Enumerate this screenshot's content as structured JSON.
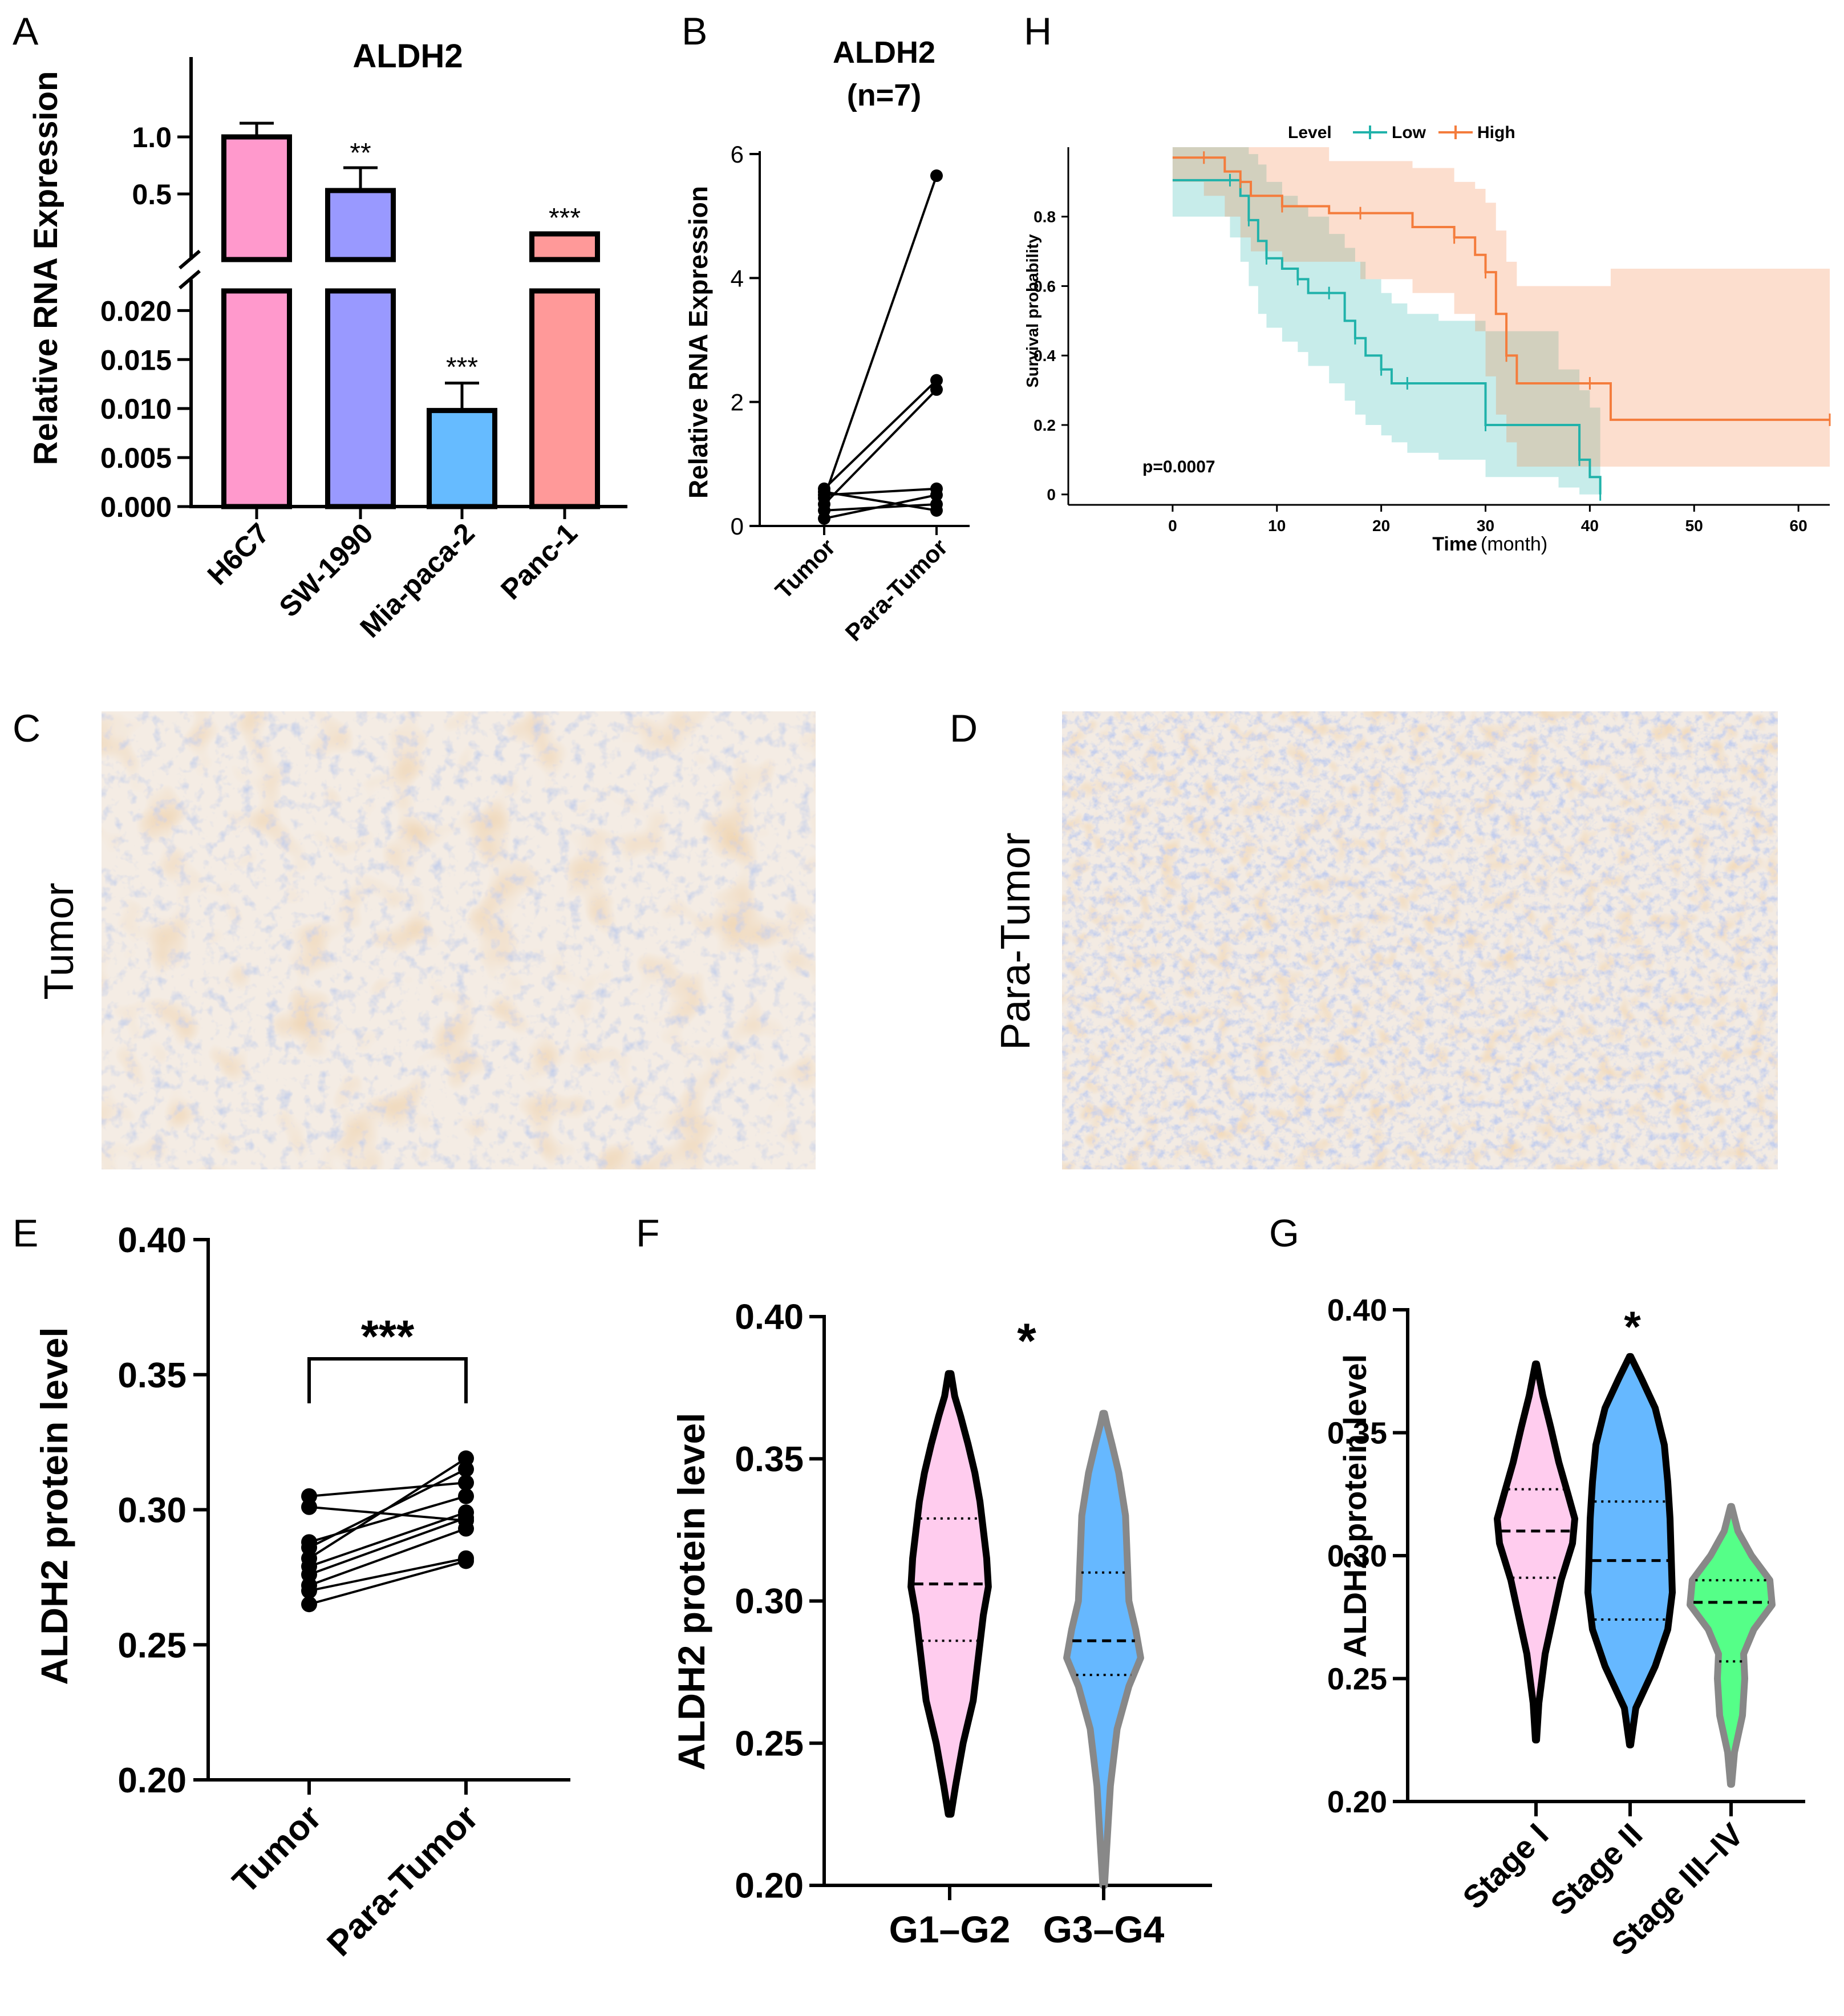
{
  "colors": {
    "h6c7": "#FF99CC",
    "sw1990": "#9999FF",
    "miapaca2": "#66BBFF",
    "panc1": "#FF9999",
    "low": "#20B2AA",
    "high": "#F47C3C",
    "violin_pink": "#FFCCEE",
    "violin_blue": "#66B8FF",
    "violin_green": "#55FF88",
    "violin_gray": "#888888"
  },
  "panels": {
    "A": "A",
    "B": "B",
    "C": "C",
    "D": "D",
    "E": "E",
    "F": "F",
    "G": "G",
    "H": "H"
  },
  "images": {
    "C_label": "Tumor",
    "D_label": "Para-Tumor"
  },
  "chart_data": [
    {
      "panel": "A",
      "type": "bar",
      "title": "ALDH2",
      "ylabel": "Relative RNA Expression",
      "categories": [
        "H6C7",
        "SW-1990",
        "Mia-paca-2",
        "Panc-1"
      ],
      "values": [
        1.0,
        0.53,
        0.0098,
        0.15
      ],
      "errors": [
        0.12,
        0.2,
        0.0028,
        0.01
      ],
      "significance": [
        "",
        "**",
        "***",
        "***"
      ],
      "axis_broken": true,
      "upper_ylim": [
        0.1,
        1.25
      ],
      "upper_ticks": [
        "1.0",
        "0.5"
      ],
      "upper_tick_values": [
        1.0,
        0.5
      ],
      "lower_ylim": [
        0,
        0.022
      ],
      "lower_ticks": [
        "0.020",
        "0.015",
        "0.010",
        "0.005",
        "0.000"
      ],
      "lower_tick_values": [
        0.02,
        0.015,
        0.01,
        0.005,
        0
      ]
    },
    {
      "panel": "B",
      "type": "scatter",
      "title": "ALDH2",
      "subtitle": "(n=7)",
      "ylabel": "Relative RNA Expression",
      "categories": [
        "Tumor",
        "Para-Tumor"
      ],
      "ylim": [
        0,
        6
      ],
      "ticks": [
        "0",
        "2",
        "4",
        "6"
      ],
      "pairs": [
        [
          0.45,
          5.65
        ],
        [
          0.6,
          2.35
        ],
        [
          0.35,
          2.2
        ],
        [
          0.5,
          0.6
        ],
        [
          0.12,
          0.5
        ],
        [
          0.25,
          0.35
        ],
        [
          0.55,
          0.25
        ]
      ]
    },
    {
      "panel": "H",
      "type": "line",
      "title": "",
      "xlabel": "Time",
      "xlabel_unit": "(month)",
      "ylabel": "Survival probability",
      "legend_title": "Level",
      "legend_position": "top",
      "xlim": [
        -10,
        63
      ],
      "ylim": [
        -0.03,
        1.0
      ],
      "xticks": [
        "0",
        "10",
        "20",
        "30",
        "40",
        "50",
        "60"
      ],
      "xtick_values": [
        0,
        10,
        20,
        30,
        40,
        50,
        60
      ],
      "yticks": [
        "0",
        "0.2",
        "0.4",
        "0.6",
        "0.8"
      ],
      "ytick_values": [
        0,
        0.2,
        0.4,
        0.6,
        0.8
      ],
      "annotation": "p=0.0007",
      "series": [
        {
          "name": "Low",
          "x": [
            0,
            5.5,
            6.5,
            7.3,
            8.2,
            9,
            10.5,
            12,
            13,
            15,
            16.5,
            17.5,
            18.5,
            20,
            21,
            22.5,
            25.5,
            30,
            37,
            39,
            40,
            41
          ],
          "values": [
            0.905,
            0.905,
            0.86,
            0.79,
            0.73,
            0.68,
            0.65,
            0.62,
            0.58,
            0.58,
            0.5,
            0.45,
            0.4,
            0.36,
            0.32,
            0.32,
            0.32,
            0.2,
            0.2,
            0.1,
            0.05,
            0
          ],
          "ci_upper": [
            1,
            1,
            1,
            0.98,
            0.95,
            0.9,
            0.86,
            0.83,
            0.8,
            0.75,
            0.71,
            0.67,
            0.62,
            0.58,
            0.55,
            0.52,
            0.5,
            0.47,
            0.36,
            0.3,
            0.25,
            0.22
          ],
          "ci_lower": [
            0.8,
            0.8,
            0.74,
            0.67,
            0.6,
            0.52,
            0.48,
            0.44,
            0.41,
            0.37,
            0.32,
            0.27,
            0.23,
            0.2,
            0.17,
            0.15,
            0.12,
            0.1,
            0.05,
            0.02,
            0,
            0
          ]
        },
        {
          "name": "High",
          "x": [
            0,
            3,
            5,
            6.5,
            7.5,
            10.5,
            15,
            18,
            23,
            27,
            29,
            30,
            31,
            32,
            33,
            40,
            42,
            63
          ],
          "values": [
            0.97,
            0.97,
            0.93,
            0.9,
            0.86,
            0.83,
            0.81,
            0.81,
            0.77,
            0.74,
            0.69,
            0.64,
            0.52,
            0.4,
            0.32,
            0.32,
            0.215,
            0.215
          ],
          "ci_upper": [
            1,
            1,
            1,
            1,
            1,
            1,
            0.96,
            0.96,
            0.94,
            0.9,
            0.88,
            0.84,
            0.76,
            0.67,
            0.6,
            0.6,
            0.65,
            0.65
          ],
          "ci_lower": [
            0.9,
            0.9,
            0.86,
            0.8,
            0.74,
            0.7,
            0.67,
            0.67,
            0.62,
            0.58,
            0.52,
            0.47,
            0.34,
            0.23,
            0.15,
            0.08,
            0.08,
            0.08
          ]
        }
      ]
    },
    {
      "panel": "E",
      "type": "scatter",
      "ylabel": "ALDH2 protein level",
      "categories": [
        "Tumor",
        "Para-Tumor"
      ],
      "ylim": [
        0.2,
        0.4
      ],
      "ticks": [
        "0.20",
        "0.25",
        "0.30",
        "0.35",
        "0.40"
      ],
      "tick_values": [
        0.2,
        0.25,
        0.3,
        0.35,
        0.4
      ],
      "significance": "***",
      "pairs": [
        [
          0.305,
          0.31
        ],
        [
          0.301,
          0.296
        ],
        [
          0.288,
          0.305
        ],
        [
          0.286,
          0.315
        ],
        [
          0.282,
          0.319
        ],
        [
          0.279,
          0.299
        ],
        [
          0.276,
          0.297
        ],
        [
          0.272,
          0.293
        ],
        [
          0.27,
          0.282
        ],
        [
          0.265,
          0.281
        ]
      ]
    },
    {
      "panel": "F",
      "type": "violin",
      "ylabel": "ALDH2 protein level",
      "categories": [
        "G1–G2",
        "G3–G4"
      ],
      "ylim": [
        0.2,
        0.4
      ],
      "ticks": [
        "0.20",
        "0.25",
        "0.30",
        "0.35",
        "0.40"
      ],
      "tick_values": [
        0.2,
        0.25,
        0.3,
        0.35,
        0.4
      ],
      "significance": "*",
      "groups": [
        {
          "name": "G1–G2",
          "min": 0.225,
          "max": 0.38,
          "q1": 0.286,
          "median": 0.306,
          "q3": 0.329,
          "profile": [
            [
              0.225,
              0.008
            ],
            [
              0.235,
              0.035
            ],
            [
              0.25,
              0.08
            ],
            [
              0.265,
              0.14
            ],
            [
              0.28,
              0.17
            ],
            [
              0.295,
              0.2
            ],
            [
              0.305,
              0.23
            ],
            [
              0.315,
              0.22
            ],
            [
              0.325,
              0.2
            ],
            [
              0.335,
              0.18
            ],
            [
              0.345,
              0.15
            ],
            [
              0.355,
              0.11
            ],
            [
              0.365,
              0.065
            ],
            [
              0.372,
              0.03
            ],
            [
              0.38,
              0.008
            ]
          ]
        },
        {
          "name": "G3–G4",
          "min": 0.2,
          "max": 0.366,
          "q1": 0.274,
          "median": 0.286,
          "q3": 0.31,
          "profile": [
            [
              0.2,
              0.005
            ],
            [
              0.215,
              0.02
            ],
            [
              0.235,
              0.04
            ],
            [
              0.255,
              0.08
            ],
            [
              0.27,
              0.15
            ],
            [
              0.28,
              0.22
            ],
            [
              0.29,
              0.19
            ],
            [
              0.3,
              0.15
            ],
            [
              0.315,
              0.14
            ],
            [
              0.33,
              0.13
            ],
            [
              0.345,
              0.09
            ],
            [
              0.355,
              0.05
            ],
            [
              0.362,
              0.02
            ],
            [
              0.366,
              0.005
            ]
          ]
        }
      ]
    },
    {
      "panel": "G",
      "type": "violin",
      "ylabel": "ALDH2 protein level",
      "categories": [
        "Stage I",
        "Stage II",
        "Stage III–IV"
      ],
      "ylim": [
        0.2,
        0.4
      ],
      "ticks": [
        "0.20",
        "0.25",
        "0.30",
        "0.35",
        "0.40"
      ],
      "tick_values": [
        0.2,
        0.25,
        0.3,
        0.35,
        0.4
      ],
      "significance": "*",
      "groups": [
        {
          "name": "Stage I",
          "min": 0.225,
          "max": 0.378,
          "q1": 0.291,
          "median": 0.31,
          "q3": 0.327,
          "profile": [
            [
              0.225,
              0.005
            ],
            [
              0.24,
              0.025
            ],
            [
              0.26,
              0.08
            ],
            [
              0.275,
              0.15
            ],
            [
              0.29,
              0.22
            ],
            [
              0.305,
              0.32
            ],
            [
              0.315,
              0.34
            ],
            [
              0.325,
              0.28
            ],
            [
              0.338,
              0.2
            ],
            [
              0.352,
              0.13
            ],
            [
              0.365,
              0.06
            ],
            [
              0.378,
              0.005
            ]
          ]
        },
        {
          "name": "Stage II",
          "min": 0.223,
          "max": 0.381,
          "q1": 0.274,
          "median": 0.298,
          "q3": 0.322,
          "profile": [
            [
              0.223,
              0.005
            ],
            [
              0.238,
              0.05
            ],
            [
              0.255,
              0.22
            ],
            [
              0.27,
              0.33
            ],
            [
              0.285,
              0.37
            ],
            [
              0.3,
              0.36
            ],
            [
              0.315,
              0.35
            ],
            [
              0.33,
              0.33
            ],
            [
              0.345,
              0.3
            ],
            [
              0.36,
              0.22
            ],
            [
              0.372,
              0.1
            ],
            [
              0.381,
              0.005
            ]
          ]
        },
        {
          "name": "Stage III–IV",
          "min": 0.207,
          "max": 0.32,
          "q1": 0.257,
          "median": 0.281,
          "q3": 0.29,
          "profile": [
            [
              0.207,
              0.005
            ],
            [
              0.22,
              0.03
            ],
            [
              0.235,
              0.1
            ],
            [
              0.25,
              0.12
            ],
            [
              0.26,
              0.11
            ],
            [
              0.27,
              0.2
            ],
            [
              0.28,
              0.36
            ],
            [
              0.29,
              0.34
            ],
            [
              0.3,
              0.18
            ],
            [
              0.31,
              0.06
            ],
            [
              0.32,
              0.005
            ]
          ]
        }
      ]
    }
  ]
}
